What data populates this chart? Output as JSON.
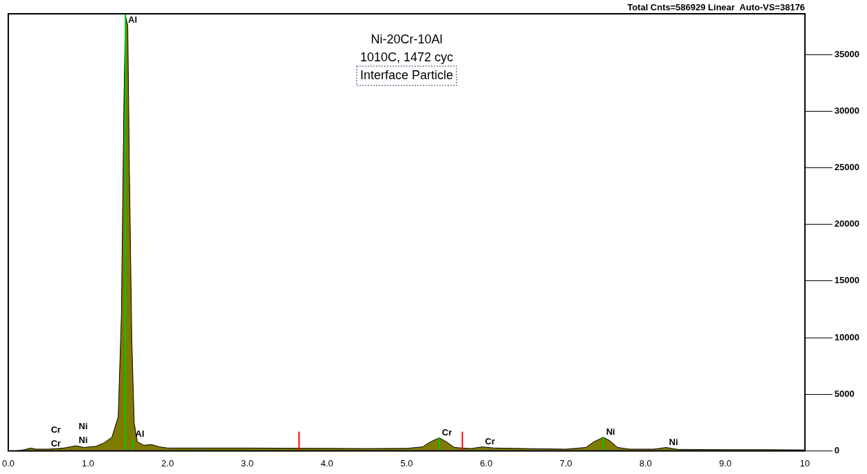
{
  "chart_data": {
    "type": "area",
    "title": "Ni-20Cr-10Al",
    "subtitle": "1010C, 1472 cyc",
    "xlim": [
      0,
      10
    ],
    "ylim": [
      0,
      38600
    ],
    "xticks": [
      {
        "value": 0,
        "label": "0.0"
      },
      {
        "value": 1,
        "label": "1.0"
      },
      {
        "value": 2,
        "label": "2.0"
      },
      {
        "value": 3,
        "label": "3.0"
      },
      {
        "value": 4,
        "label": "4.0"
      },
      {
        "value": 5,
        "label": "5.0"
      },
      {
        "value": 6,
        "label": "6.0"
      },
      {
        "value": 7,
        "label": "7.0"
      },
      {
        "value": 8,
        "label": "8.0"
      },
      {
        "value": 9,
        "label": "9.0"
      },
      10
    ],
    "yticks": [
      0,
      5000,
      10000,
      15000,
      20000,
      25000,
      30000,
      35000
    ],
    "grid": false,
    "legend": false,
    "marker": "none",
    "series": [
      {
        "color": "#7f7a00",
        "x": [
          0.1,
          0.2,
          0.28,
          0.35,
          0.5,
          0.7,
          0.85,
          0.95,
          1.1,
          1.2,
          1.3,
          1.38,
          1.42,
          1.45,
          1.47,
          1.5,
          1.52,
          1.55,
          1.58,
          1.62,
          1.7,
          1.8,
          1.9,
          2.0,
          2.5,
          3.0,
          3.5,
          4.0,
          4.5,
          5.0,
          5.2,
          5.3,
          5.41,
          5.5,
          5.6,
          5.8,
          5.95,
          6.1,
          6.5,
          7.0,
          7.25,
          7.35,
          7.47,
          7.55,
          7.65,
          7.8,
          8.1,
          8.26,
          8.4,
          9.0,
          9.5,
          10.0
        ],
        "values": [
          0,
          100,
          250,
          150,
          150,
          250,
          450,
          300,
          400,
          700,
          1200,
          3000,
          12000,
          30000,
          38500,
          37500,
          25000,
          10000,
          2500,
          800,
          500,
          550,
          350,
          250,
          250,
          250,
          230,
          220,
          200,
          220,
          350,
          800,
          1150,
          800,
          300,
          200,
          350,
          250,
          200,
          150,
          300,
          800,
          1200,
          900,
          300,
          150,
          150,
          300,
          130,
          100,
          100,
          80
        ]
      },
      {
        "type": "line",
        "color": "#00cc00",
        "x": [
          1.47,
          1.47
        ],
        "values": [
          0,
          38600
        ]
      },
      {
        "type": "line",
        "color": "#00cc00",
        "x": [
          1.56,
          1.56
        ],
        "values": [
          0,
          1000
        ]
      },
      {
        "type": "line",
        "color": "#00cc00",
        "x": [
          5.41,
          5.41
        ],
        "values": [
          0,
          1150
        ]
      },
      {
        "type": "line",
        "color": "#00cc00",
        "x": [
          7.47,
          7.47
        ],
        "values": [
          0,
          1200
        ]
      },
      {
        "type": "line",
        "color": "#ff0000",
        "x": [
          3.65,
          3.65
        ],
        "values": [
          0,
          1700
        ]
      },
      {
        "type": "line",
        "color": "#ff0000",
        "x": [
          5.7,
          5.7
        ],
        "values": [
          0,
          1700
        ]
      }
    ],
    "annotations": [
      "Total Cnts=586929 Linear  Auto-VS=38176",
      "Interface Particle",
      {
        "text": "Cr",
        "x": 0.5,
        "y": 150
      },
      "Cr",
      {
        "text": "Ni",
        "x": 0.85,
        "y": 450
      },
      "Ni",
      {
        "text": "Al",
        "x": 1.47,
        "y": 38600
      },
      {
        "text": "Al",
        "x": 1.56,
        "y": 1000
      },
      {
        "text": "Cr",
        "x": 5.41,
        "y": 1150
      },
      {
        "text": "Cr",
        "x": 5.95,
        "y": 350
      },
      {
        "text": "Ni",
        "x": 7.47,
        "y": 1200
      },
      {
        "text": "Ni",
        "x": 8.26,
        "y": 300
      }
    ]
  }
}
